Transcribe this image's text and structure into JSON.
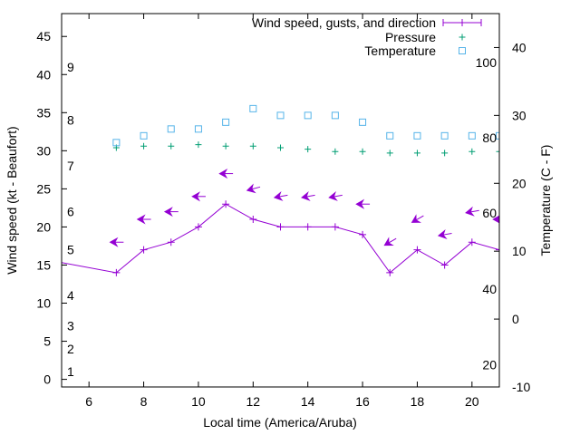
{
  "chart_data": {
    "type": "line",
    "xlabel": "Local time (America/Aruba)",
    "ylabel": "Wind speed (kt - Beaufort)",
    "y2label": "Temperature (C - F)",
    "xlim": [
      5,
      21
    ],
    "ylim": [
      -1,
      48
    ],
    "y2lim": [
      -10,
      45
    ],
    "x_ticks": [
      "6",
      "8",
      "10",
      "12",
      "14",
      "16",
      "18",
      "20"
    ],
    "y_ticks": [
      "0",
      "5",
      "10",
      "15",
      "20",
      "25",
      "30",
      "35",
      "40",
      "45"
    ],
    "y2_ticks": [
      "-10",
      "0",
      "10",
      "20",
      "30",
      "40"
    ],
    "beaufort_labels": [
      {
        "label": "1",
        "y": 1
      },
      {
        "label": "2",
        "y": 4
      },
      {
        "label": "3",
        "y": 7
      },
      {
        "label": "4",
        "y": 11
      },
      {
        "label": "5",
        "y": 17
      },
      {
        "label": "6",
        "y": 22
      },
      {
        "label": "7",
        "y": 28
      },
      {
        "label": "8",
        "y": 34
      },
      {
        "label": "9",
        "y": 41
      }
    ],
    "fahrenheit_labels": [
      {
        "label": "20",
        "y2": -6.7
      },
      {
        "label": "40",
        "y2": 4.4
      },
      {
        "label": "60",
        "y2": 15.6
      },
      {
        "label": "80",
        "y2": 26.7
      },
      {
        "label": "100",
        "y2": 37.8
      }
    ],
    "legend": {
      "position": "top-right",
      "entries": [
        "Wind speed, gusts, and direction",
        "Pressure",
        "Temperature"
      ]
    },
    "colors": {
      "wind": "#9400d3",
      "pressure": "#009e73",
      "temperature": "#56b4e9"
    },
    "series": [
      {
        "name": "Wind speed, gusts, and direction",
        "axis": "y",
        "x": [
          4,
          7,
          8,
          9,
          10,
          11,
          12,
          13,
          14,
          15,
          16,
          17,
          18,
          19,
          20,
          21,
          22
        ],
        "y": [
          16,
          14,
          17,
          18,
          20,
          23,
          21,
          20,
          20,
          20,
          19,
          14,
          17,
          15,
          18,
          17,
          16
        ]
      },
      {
        "name": "Gusts",
        "axis": "y",
        "x": [
          7,
          8,
          9,
          10,
          11,
          12,
          13,
          14,
          15,
          16,
          17,
          18,
          19,
          20,
          21
        ],
        "y": [
          18,
          21,
          22,
          24,
          27,
          25,
          24,
          24,
          24,
          23,
          18,
          21,
          19,
          22,
          21
        ],
        "direction": [
          90,
          90,
          90,
          90,
          90,
          75,
          80,
          80,
          80,
          90,
          60,
          60,
          80,
          80,
          90
        ]
      },
      {
        "name": "Pressure",
        "axis": "y",
        "x": [
          7,
          8,
          9,
          10,
          11,
          12,
          13,
          14,
          15,
          16,
          17,
          18,
          19,
          20,
          21
        ],
        "y": [
          30.4,
          30.6,
          30.6,
          30.8,
          30.6,
          30.6,
          30.4,
          30.2,
          29.9,
          29.9,
          29.7,
          29.7,
          29.7,
          29.9,
          29.9
        ]
      },
      {
        "name": "Temperature",
        "axis": "y2",
        "x": [
          7,
          8,
          9,
          10,
          11,
          12,
          13,
          14,
          15,
          16,
          17,
          18,
          19,
          20,
          21
        ],
        "y": [
          26,
          27,
          28,
          28,
          29,
          31,
          30,
          30,
          30,
          29,
          27,
          27,
          27,
          27,
          27
        ]
      }
    ]
  }
}
